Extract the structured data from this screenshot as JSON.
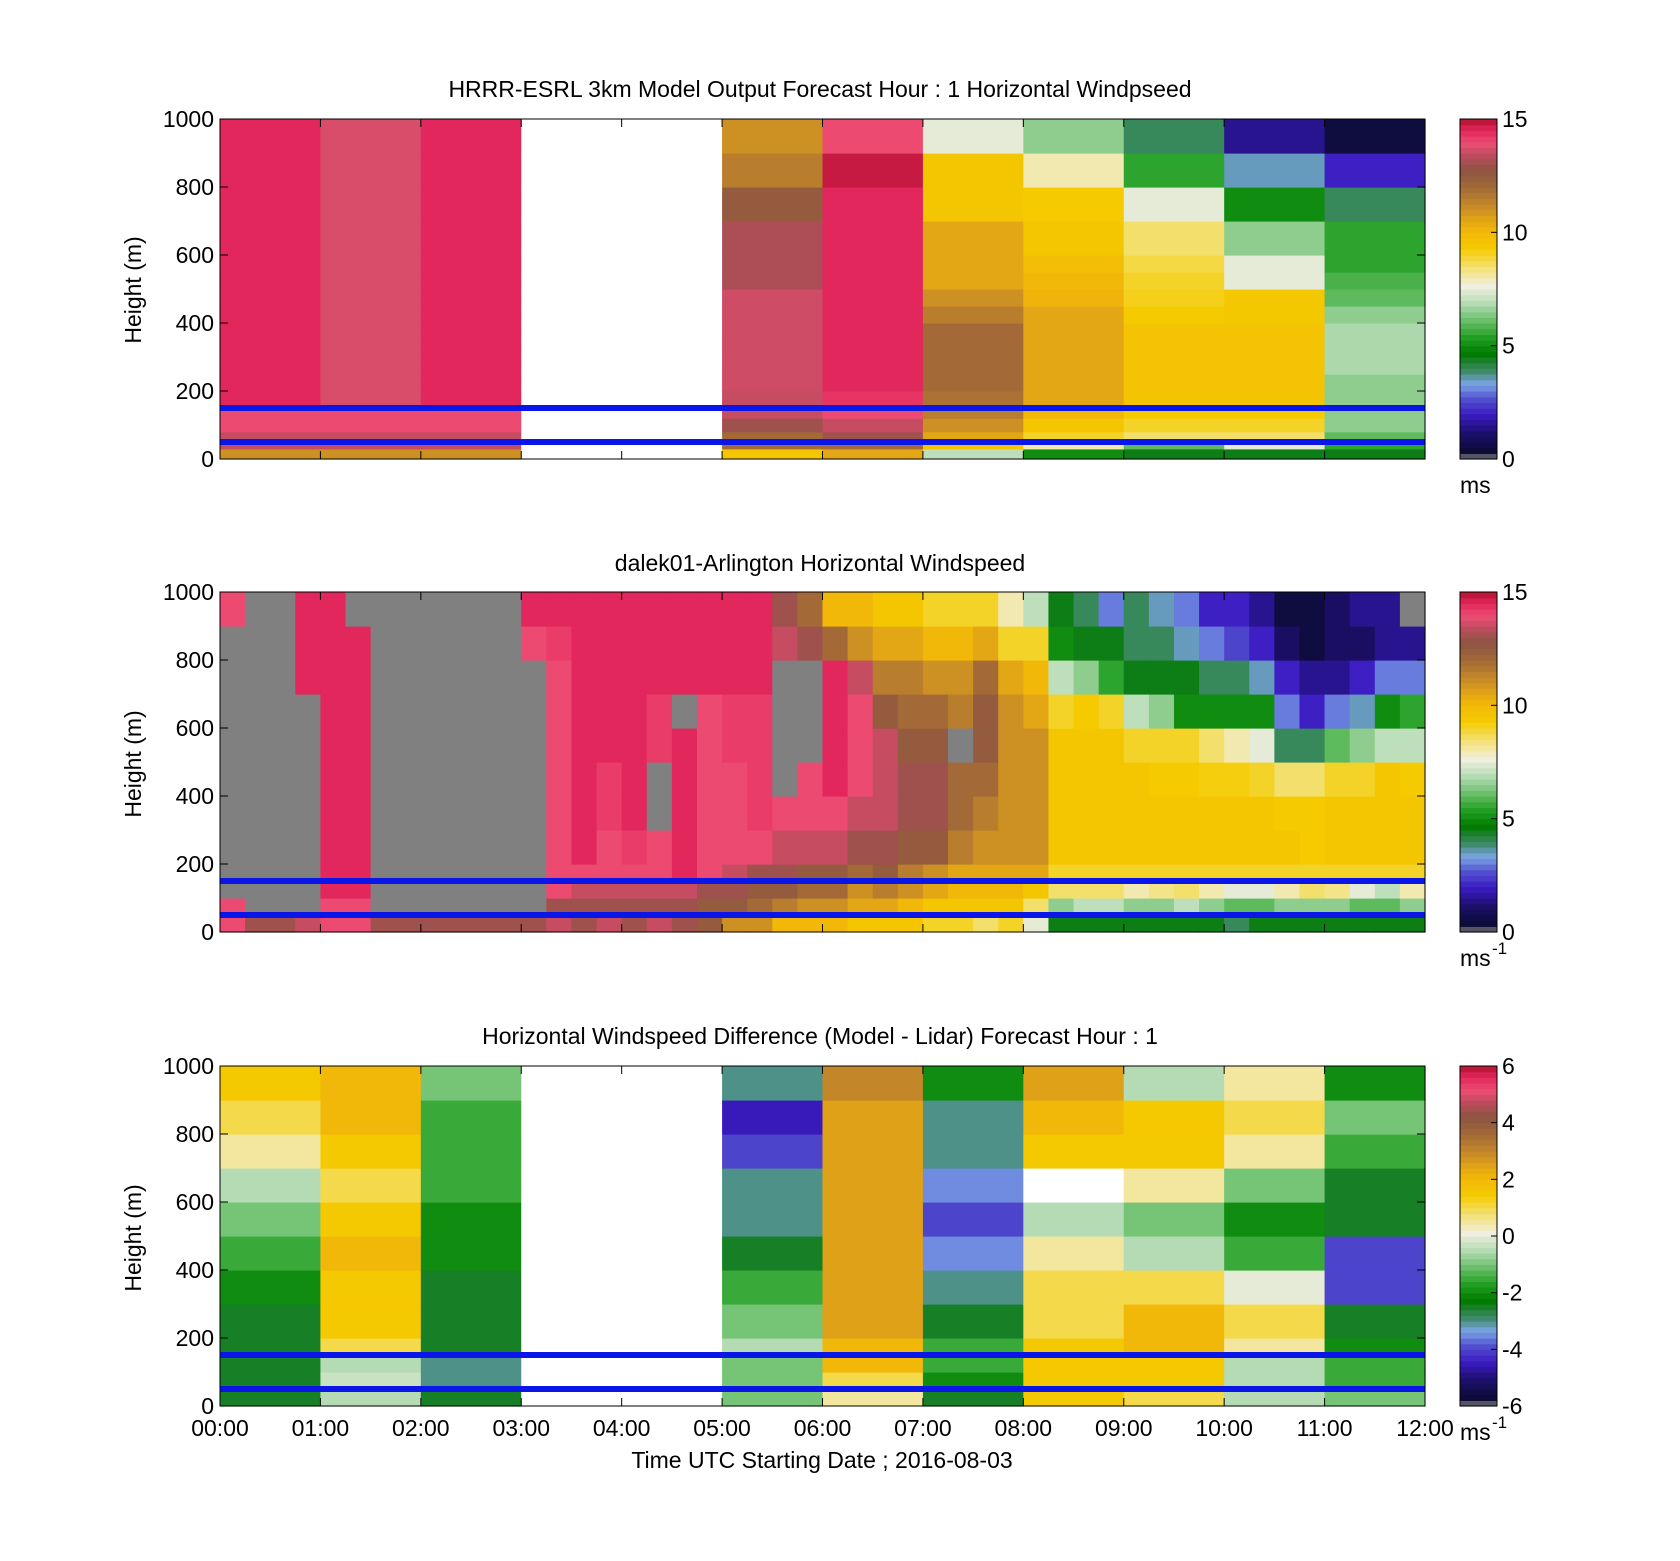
{
  "chart_data": [
    {
      "type": "heatmap",
      "title": "HRRR-ESRL 3km Model Output   Forecast Hour : 1 Horizontal Windpseed",
      "ylabel": "Height (m)",
      "xlabel": "",
      "ylim": [
        0,
        1000
      ],
      "xlim": [
        "00:00",
        "12:00"
      ],
      "yticks": [
        "0",
        "200",
        "400",
        "600",
        "800",
        "1000"
      ],
      "colorbar": {
        "min": 0,
        "max": 15,
        "ticks": [
          "0",
          "5",
          "10",
          "15"
        ],
        "unit": "ms"
      },
      "reference_lines_height_m": [
        150,
        50
      ],
      "time_bins_hours": [
        0,
        1,
        2,
        3,
        4,
        5,
        6,
        7,
        8,
        9,
        10,
        11,
        12
      ],
      "height_bins_m": [
        0,
        30,
        50,
        80,
        120,
        160,
        200,
        250,
        300,
        350,
        400,
        450,
        500,
        550,
        600,
        700,
        800,
        900,
        1000
      ],
      "values": [
        [
          11,
          13.5,
          13.5,
          14,
          14,
          14.5,
          14.5,
          14.5,
          14.5,
          14.5,
          14.5,
          14.5,
          14.5,
          14.5,
          14.5,
          14.5,
          14.5,
          14.5
        ],
        [
          11,
          13.5,
          13.5,
          14,
          14,
          13.7,
          13.7,
          13.7,
          13.7,
          13.7,
          13.7,
          13.7,
          13.7,
          13.7,
          13.7,
          13.7,
          13.7,
          13.7
        ],
        [
          11,
          13.5,
          13.5,
          14,
          14,
          14.5,
          14.5,
          14.5,
          14.5,
          14.5,
          14.5,
          14.5,
          14.5,
          14.5,
          14.5,
          14.5,
          14.5,
          14.5
        ],
        [
          null,
          null,
          null,
          null,
          null,
          null,
          null,
          null,
          null,
          null,
          null,
          null,
          null,
          null,
          null,
          null,
          null,
          null
        ],
        [
          null,
          null,
          null,
          null,
          null,
          null,
          null,
          null,
          null,
          null,
          null,
          null,
          null,
          null,
          null,
          null,
          null,
          null
        ],
        [
          9.5,
          12,
          12,
          13,
          13.5,
          13.5,
          13.6,
          13.6,
          13.6,
          13.6,
          13.6,
          13.6,
          13.2,
          13.2,
          13.2,
          12.5,
          11.5,
          11
        ],
        [
          10.5,
          12,
          13,
          13.5,
          14,
          14.3,
          14.5,
          14.5,
          14.5,
          14.5,
          14.5,
          14.5,
          14.5,
          14.5,
          14.5,
          14.5,
          14.8,
          14
        ],
        [
          7,
          9.5,
          10.5,
          11,
          11.5,
          11.8,
          12,
          12,
          12,
          12,
          11.5,
          11,
          10.5,
          10.5,
          10.5,
          9.5,
          9.5,
          7.5
        ],
        [
          5,
          8,
          9,
          9.5,
          10,
          10.5,
          10.5,
          10.5,
          10.5,
          10.5,
          10.5,
          10.2,
          10,
          9.8,
          9.5,
          9.3,
          8,
          6.5
        ],
        [
          4.5,
          6,
          8.5,
          9,
          9.3,
          9.6,
          9.6,
          9.6,
          9.6,
          9.6,
          9.3,
          9.1,
          9,
          8.8,
          8.5,
          7.5,
          5.5,
          4
        ],
        [
          4.5,
          7.5,
          8.5,
          9,
          9.3,
          9.6,
          9.6,
          9.6,
          9.6,
          9.6,
          9.4,
          9.4,
          7.5,
          7.5,
          6.5,
          5,
          3.5,
          1.5
        ],
        [
          4.5,
          5.5,
          6,
          6.5,
          6.5,
          6.5,
          6.5,
          6.8,
          6.8,
          6.8,
          6.5,
          6,
          5.8,
          5.5,
          5.5,
          4,
          2,
          0.5
        ]
      ]
    },
    {
      "type": "heatmap",
      "title": "dalek01-Arlington  Horizontal Windspeed",
      "ylabel": "Height (m)",
      "xlabel": "",
      "ylim": [
        0,
        1000
      ],
      "xlim": [
        "00:00",
        "12:00"
      ],
      "yticks": [
        "0",
        "200",
        "400",
        "600",
        "800",
        "1000"
      ],
      "colorbar": {
        "min": 0,
        "max": 15,
        "ticks": [
          "0",
          "5",
          "10",
          "15"
        ],
        "unit": "ms",
        "unit_exponent": "-1"
      },
      "reference_lines_height_m": [
        150,
        50
      ],
      "time_bins_hours": [
        0,
        0.25,
        0.5,
        0.75,
        1,
        1.25,
        1.5,
        1.75,
        2,
        2.25,
        2.5,
        2.75,
        3,
        3.25,
        3.5,
        3.75,
        4,
        4.25,
        4.5,
        4.75,
        5,
        5.25,
        5.5,
        5.75,
        6,
        6.25,
        6.5,
        6.75,
        7,
        7.25,
        7.5,
        7.75,
        8,
        8.25,
        8.5,
        8.75,
        9,
        9.25,
        9.5,
        9.75,
        10,
        10.25,
        10.5,
        10.75,
        11,
        11.25,
        11.5,
        11.75,
        12
      ],
      "height_bins_m": [
        0,
        50,
        100,
        150,
        200,
        300,
        400,
        500,
        600,
        700,
        800,
        900,
        1000
      ],
      "values": [
        [
          14,
          14,
          null,
          null,
          null,
          null,
          null,
          null,
          null,
          null,
          null,
          14
        ],
        [
          13,
          null,
          null,
          null,
          null,
          null,
          null,
          null,
          null,
          null,
          null,
          null
        ],
        [
          13,
          null,
          null,
          null,
          null,
          null,
          null,
          null,
          null,
          null,
          null,
          null
        ],
        [
          13.5,
          null,
          null,
          null,
          null,
          null,
          null,
          null,
          null,
          14.5,
          14.5,
          14.5
        ],
        [
          14,
          14,
          14.5,
          14.5,
          14.5,
          14.5,
          14.5,
          14.5,
          14.5,
          14.5,
          14.5,
          14.5
        ],
        [
          14,
          14,
          14.5,
          14.5,
          14.5,
          14.5,
          14.5,
          14.5,
          14.5,
          14.5,
          14.5,
          null
        ],
        [
          13,
          null,
          null,
          null,
          null,
          null,
          null,
          null,
          null,
          null,
          null,
          null
        ],
        [
          13,
          null,
          null,
          null,
          null,
          null,
          null,
          null,
          null,
          null,
          null,
          null
        ],
        [
          13,
          null,
          null,
          null,
          null,
          null,
          null,
          null,
          null,
          null,
          null,
          null
        ],
        [
          13,
          null,
          null,
          null,
          null,
          null,
          null,
          null,
          null,
          null,
          null,
          null
        ],
        [
          13,
          null,
          null,
          null,
          null,
          null,
          null,
          null,
          null,
          null,
          null,
          null
        ],
        [
          13,
          null,
          null,
          null,
          null,
          null,
          null,
          null,
          null,
          null,
          null,
          null
        ],
        [
          13,
          null,
          null,
          null,
          null,
          null,
          null,
          null,
          null,
          null,
          14,
          14.5
        ],
        [
          13.5,
          13,
          14,
          14,
          14,
          14,
          14,
          14,
          14,
          14,
          14.2,
          14.5
        ],
        [
          13,
          13,
          13.5,
          14,
          14.5,
          14.5,
          14.5,
          14.5,
          14.5,
          14.5,
          14.5,
          14.5
        ],
        [
          13.5,
          13,
          13.5,
          14,
          14,
          14.2,
          14.2,
          14.5,
          14.5,
          14.5,
          14.5,
          14.5
        ],
        [
          13,
          13,
          13.5,
          14,
          14.2,
          14.5,
          14.5,
          14.5,
          14.5,
          14.5,
          14.5,
          14.5
        ],
        [
          13.5,
          13,
          13.5,
          14,
          14,
          null,
          null,
          14.2,
          14.2,
          14.5,
          14.5,
          14.5
        ],
        [
          13,
          13,
          13.5,
          14.5,
          14.5,
          14.5,
          14.5,
          14.5,
          null,
          14.5,
          14.5,
          14.5
        ],
        [
          12.5,
          12.5,
          13,
          14,
          14,
          14,
          14,
          14,
          14,
          14.5,
          14.5,
          14.5
        ],
        [
          11,
          12.5,
          13,
          13.5,
          14,
          14,
          14,
          14.2,
          14.2,
          14.5,
          14.5,
          14.5
        ],
        [
          11,
          12,
          12.5,
          13,
          14,
          14.2,
          14.2,
          14.2,
          14.2,
          14.5,
          14.5,
          14.5
        ],
        [
          10,
          11.5,
          12.5,
          13,
          13.5,
          14,
          null,
          null,
          null,
          null,
          13.5,
          13
        ],
        [
          10,
          11,
          12,
          12.5,
          13.5,
          14,
          14,
          null,
          null,
          null,
          13,
          12
        ],
        [
          10,
          11,
          12,
          12.5,
          13.5,
          14,
          14.5,
          14.5,
          14.5,
          14.5,
          12,
          10
        ],
        [
          9.5,
          10.5,
          11,
          12,
          13,
          13.5,
          14,
          14,
          14,
          13.5,
          11,
          10
        ],
        [
          9.5,
          10.5,
          11.5,
          12.5,
          13,
          13.5,
          13.5,
          13.5,
          12.5,
          11.5,
          10.5,
          9.5
        ],
        [
          9.5,
          10,
          11,
          11.5,
          12.5,
          13,
          13,
          12.5,
          12,
          11.5,
          10.5,
          9.5
        ],
        [
          9,
          9.5,
          10.5,
          11,
          12.5,
          13,
          13,
          12.5,
          12,
          11,
          10,
          9
        ],
        [
          9,
          9.5,
          10,
          10.5,
          11.5,
          12,
          12,
          null,
          11.5,
          11,
          10,
          9
        ],
        [
          8.5,
          9.5,
          10,
          10.5,
          11,
          11.5,
          12,
          12.5,
          12.5,
          12,
          10.5,
          9
        ],
        [
          9,
          9.5,
          10,
          10.5,
          11,
          11,
          11,
          11,
          11,
          10.5,
          9,
          8
        ],
        [
          7.5,
          8.5,
          9.5,
          10.5,
          11,
          11,
          11,
          11,
          10.5,
          10,
          9,
          7
        ],
        [
          4.5,
          6.5,
          8.5,
          9,
          9.5,
          9.5,
          9.5,
          9.5,
          9,
          7,
          5,
          4.5
        ],
        [
          4.5,
          7,
          8.5,
          9,
          9.5,
          9.5,
          9.5,
          9.5,
          9.3,
          6.5,
          4.5,
          4
        ],
        [
          4.5,
          7,
          8.5,
          9,
          9.5,
          9.5,
          9.5,
          9.5,
          9,
          5.5,
          4.5,
          3
        ],
        [
          4.5,
          6.5,
          8,
          9,
          9.5,
          9.5,
          9.5,
          9,
          7,
          4.5,
          4,
          4
        ],
        [
          4.5,
          6.5,
          8.3,
          9,
          9.5,
          9.5,
          9.3,
          9,
          6.5,
          4.5,
          4,
          3.5
        ],
        [
          4.5,
          7,
          8.5,
          9,
          9.5,
          9.5,
          9.3,
          9,
          5,
          4.5,
          3.5,
          3
        ],
        [
          4.5,
          6.5,
          8,
          9,
          9.5,
          9.5,
          9.2,
          8.5,
          5,
          4,
          3,
          2
        ],
        [
          4,
          6,
          7.5,
          9,
          9.5,
          9.5,
          9.2,
          8,
          5,
          4,
          2.5,
          2
        ],
        [
          4.5,
          6,
          7.5,
          9,
          9.5,
          9.5,
          9,
          7.5,
          5,
          3.5,
          2,
          1.5
        ],
        [
          4.5,
          6.5,
          8,
          9,
          9.5,
          9.3,
          8.5,
          4,
          3,
          2,
          1,
          0.5
        ],
        [
          4.5,
          6.5,
          8.5,
          9,
          9.3,
          9.3,
          8.5,
          4,
          2,
          1.5,
          0.5,
          0.5
        ],
        [
          4.5,
          6.5,
          8.3,
          9,
          9.5,
          9.5,
          9,
          6,
          3,
          1.5,
          1,
          1
        ],
        [
          4.5,
          6,
          7.5,
          9,
          9.5,
          9.5,
          9,
          6.5,
          3.5,
          2,
          1,
          1.5
        ],
        [
          4.5,
          6,
          7,
          9,
          9.5,
          9.5,
          9.5,
          7,
          5,
          3,
          1.5,
          1.5
        ],
        [
          4.5,
          6.5,
          8,
          9,
          9.5,
          9.5,
          9.3,
          7,
          5.5,
          3,
          1.5,
          null
        ]
      ]
    },
    {
      "type": "heatmap",
      "title": "Horizontal Windspeed Difference (Model - Lidar) Forecast Hour : 1",
      "ylabel": "Height (m)",
      "xlabel": "Time UTC  Starting Date ; 2016-08-03",
      "ylim": [
        0,
        1000
      ],
      "xlim": [
        "00:00",
        "12:00"
      ],
      "xticks": [
        "00:00",
        "01:00",
        "02:00",
        "03:00",
        "04:00",
        "05:00",
        "06:00",
        "07:00",
        "08:00",
        "09:00",
        "10:00",
        "11:00",
        "12:00"
      ],
      "yticks": [
        "0",
        "200",
        "400",
        "600",
        "800",
        "1000"
      ],
      "colorbar": {
        "min": -6,
        "max": 6,
        "ticks": [
          "-6",
          "-4",
          "-2",
          "0",
          "2",
          "4",
          "6"
        ],
        "unit": "ms",
        "unit_exponent": "-1"
      },
      "reference_lines_height_m": [
        150,
        50
      ],
      "time_bins_hours": [
        0,
        1,
        2,
        3,
        4,
        5,
        6,
        7,
        8,
        9,
        10,
        11,
        12
      ],
      "height_bins_m": [
        0,
        50,
        100,
        150,
        200,
        300,
        400,
        500,
        600,
        700,
        800,
        900,
        1000
      ],
      "values": [
        [
          -2.5,
          -2.5,
          -2.5,
          -2.5,
          -2.5,
          -2,
          -1.5,
          -1,
          -0.5,
          0.5,
          1,
          1.5
        ],
        [
          -0.5,
          -0.3,
          -0.5,
          1,
          1.5,
          1.5,
          2,
          1.5,
          1,
          1.5,
          2,
          2
        ],
        [
          -2.5,
          -3,
          -3,
          -2.5,
          -2.5,
          -2.5,
          -2,
          -2,
          -1.5,
          -1.5,
          -1.5,
          -1
        ],
        [
          null,
          null,
          null,
          null,
          null,
          null,
          null,
          null,
          null,
          null,
          null,
          null
        ],
        [
          null,
          null,
          null,
          null,
          null,
          null,
          null,
          null,
          null,
          null,
          null,
          null
        ],
        [
          -1,
          -1,
          -1,
          -0.5,
          -1,
          -1.5,
          -2.5,
          -3,
          -3,
          -4,
          -4.5,
          -3
        ],
        [
          0.5,
          1,
          2,
          2,
          2.5,
          2.5,
          2.5,
          2.5,
          2.5,
          2.5,
          2.5,
          3
        ],
        [
          -2.5,
          -2,
          -1.5,
          -1.5,
          -2.5,
          -3,
          -3.5,
          -4,
          -3.5,
          -3,
          -3,
          -2
        ],
        [
          1.5,
          1.5,
          1.5,
          1.5,
          1,
          1,
          0.5,
          -0.5,
          null,
          1.5,
          2,
          2.5
        ],
        [
          1,
          1.5,
          1.5,
          2,
          2,
          1,
          -0.5,
          -1,
          0.5,
          1.5,
          1.5,
          -0.5
        ],
        [
          -0.5,
          -0.5,
          -0.5,
          0.5,
          1,
          0,
          -1.5,
          -2,
          -1,
          0.5,
          1,
          0.5
        ],
        [
          -1,
          -1.5,
          -1.5,
          -2,
          -2.5,
          -4,
          -4,
          -2.5,
          -2.5,
          -1.5,
          -1,
          -2
        ]
      ]
    }
  ]
}
